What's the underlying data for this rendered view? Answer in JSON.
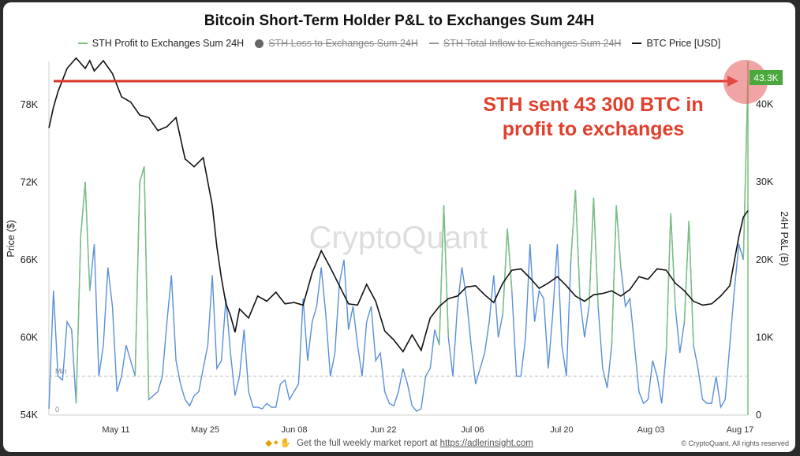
{
  "title": "Bitcoin Short-Term Holder P&L to Exchanges Sum 24H",
  "legend": [
    {
      "label": "STH Profit to Exchanges Sum 24H",
      "color": "#7cc07c",
      "marker": "line",
      "active": true
    },
    {
      "label": "STH Loss to Exchanges Sum 24H",
      "color": "#666666",
      "marker": "dot",
      "active": false
    },
    {
      "label": "STH Total Inflow to Exchanges Sum 24H",
      "color": "#999999",
      "marker": "line",
      "active": false
    },
    {
      "label": "BTC Price [USD]",
      "color": "#111111",
      "marker": "line",
      "active": true
    }
  ],
  "watermark": "CryptoQuant",
  "annotation": {
    "line1": "STH sent 43 300 BTC in",
    "line2": "profit to exchanges",
    "color": "#e0402c"
  },
  "value_badge": "43.3K",
  "min_label": "Min",
  "zero_label": "0",
  "footer": {
    "prefix": "Get the full weekly market report at ",
    "link": "https://adlerinsight.com"
  },
  "copyright": "© CryptoQuant. All rights reserved",
  "chart_data": {
    "type": "line",
    "xlabel": "",
    "x_ticks": [
      "May 11",
      "May 25",
      "Jun 08",
      "Jun 22",
      "Jul 06",
      "Jul 20",
      "Aug 03",
      "Aug 17"
    ],
    "y_left": {
      "label": "Price ($)",
      "ticks": [
        "54K",
        "60K",
        "66K",
        "72K",
        "78K"
      ],
      "range": [
        54000,
        80000
      ]
    },
    "y_right": {
      "label": "24H P&L (B)",
      "ticks": [
        "0",
        "10K",
        "20K",
        "30K",
        "40K"
      ],
      "range": [
        0,
        43300
      ]
    },
    "min_reference": 5000,
    "peak_reference": 43300,
    "series": [
      {
        "name": "BTC Price [USD]",
        "axis": "left",
        "color": "#111111",
        "x": [
          0,
          1,
          2,
          4,
          6,
          8,
          9,
          10,
          12,
          14,
          16,
          18,
          20,
          22,
          24,
          26,
          28,
          30,
          32,
          34,
          36,
          37,
          38,
          39,
          40,
          41,
          42,
          44,
          46,
          48,
          50,
          52,
          54,
          56,
          58,
          60,
          62,
          64,
          66,
          68,
          70,
          72,
          74,
          76,
          78,
          80,
          82,
          84,
          86,
          88,
          90,
          92,
          94,
          96,
          98,
          100,
          102,
          104,
          106,
          108,
          110,
          112,
          114,
          116,
          118,
          120,
          122,
          124,
          126,
          128,
          130,
          132,
          134,
          136,
          138,
          140,
          142,
          144,
          146,
          148,
          150,
          152,
          153,
          154
        ],
        "values": [
          76200,
          77800,
          79000,
          80800,
          81600,
          80800,
          81400,
          80600,
          81400,
          80400,
          78600,
          78200,
          77200,
          77000,
          76000,
          76300,
          77000,
          73800,
          73200,
          73900,
          70200,
          67000,
          64600,
          62600,
          61700,
          60400,
          62200,
          61500,
          63200,
          62800,
          63500,
          62600,
          62700,
          62500,
          65000,
          66700,
          65400,
          64000,
          62600,
          62500,
          64100,
          62800,
          60500,
          59800,
          58900,
          60200,
          59000,
          61500,
          62400,
          63000,
          63200,
          63900,
          64000,
          63300,
          62700,
          64200,
          65200,
          65300,
          64600,
          63800,
          64200,
          64700,
          64000,
          63200,
          62800,
          63300,
          63400,
          63600,
          63200,
          63700,
          64700,
          64500,
          65300,
          65200,
          64200,
          63600,
          62800,
          62500,
          62600,
          63200,
          64000,
          67800,
          69300,
          69800
        ]
      },
      {
        "name": "STH Profit to Exchanges Sum 24H",
        "axis": "right",
        "color": "#7cc07c",
        "color_low": "#5a8fd6",
        "x": [
          0,
          1,
          2,
          3,
          4,
          5,
          6,
          7,
          8,
          9,
          10,
          11,
          12,
          13,
          14,
          15,
          16,
          17,
          18,
          19,
          20,
          21,
          22,
          23,
          24,
          25,
          26,
          27,
          28,
          29,
          30,
          31,
          32,
          33,
          34,
          35,
          36,
          37,
          38,
          39,
          40,
          41,
          42,
          43,
          44,
          45,
          46,
          47,
          48,
          49,
          50,
          51,
          52,
          53,
          54,
          55,
          56,
          57,
          58,
          59,
          60,
          61,
          62,
          63,
          64,
          65,
          66,
          67,
          68,
          69,
          70,
          71,
          72,
          73,
          74,
          75,
          76,
          77,
          78,
          79,
          80,
          81,
          82,
          83,
          84,
          85,
          86,
          87,
          88,
          89,
          90,
          91,
          92,
          93,
          94,
          95,
          96,
          97,
          98,
          99,
          100,
          101,
          102,
          103,
          104,
          105,
          106,
          107,
          108,
          109,
          110,
          111,
          112,
          113,
          114,
          115,
          116,
          117,
          118,
          119,
          120,
          121,
          122,
          123,
          124,
          125,
          126,
          127,
          128,
          129,
          130,
          131,
          132,
          133,
          134,
          135,
          136,
          137,
          138,
          139,
          140,
          141,
          142,
          143,
          144,
          145,
          146,
          147,
          148,
          149,
          150,
          151,
          152,
          153,
          154
        ],
        "values": [
          800,
          16000,
          5000,
          4500,
          12000,
          11000,
          1500,
          23000,
          30000,
          16000,
          22000,
          5000,
          9000,
          19000,
          14000,
          3000,
          5000,
          9000,
          7000,
          5000,
          30000,
          32000,
          2000,
          2500,
          3000,
          5000,
          12000,
          18000,
          7000,
          4000,
          2000,
          1200,
          2500,
          3000,
          6000,
          9000,
          18000,
          6000,
          7000,
          15000,
          8000,
          2500,
          5000,
          11000,
          3000,
          1000,
          1000,
          800,
          1500,
          1000,
          1000,
          4000,
          4500,
          2000,
          3000,
          4000,
          15000,
          7000,
          12000,
          14000,
          19000,
          13000,
          5000,
          8000,
          17000,
          20000,
          11000,
          14000,
          9000,
          5000,
          12000,
          14000,
          7000,
          8000,
          3000,
          1500,
          1200,
          3000,
          6000,
          4000,
          1200,
          500,
          800,
          5000,
          6000,
          11000,
          9000,
          27000,
          10000,
          5000,
          14000,
          19000,
          15000,
          9000,
          4000,
          6000,
          8000,
          12000,
          18000,
          10000,
          13000,
          24000,
          16000,
          5000,
          5000,
          10000,
          22000,
          12000,
          16000,
          15000,
          6000,
          13000,
          22000,
          9000,
          5000,
          20000,
          29000,
          15000,
          10000,
          14000,
          28000,
          14000,
          6000,
          3500,
          9000,
          27000,
          19000,
          14000,
          15000,
          9000,
          3000,
          1500,
          2000,
          7000,
          5000,
          1500,
          8000,
          26000,
          14000,
          8000,
          12000,
          25000,
          9000,
          6000,
          2000,
          1500,
          1500,
          5000,
          1000,
          2000,
          9000,
          16000,
          22000,
          20000,
          43300
        ]
      }
    ]
  }
}
